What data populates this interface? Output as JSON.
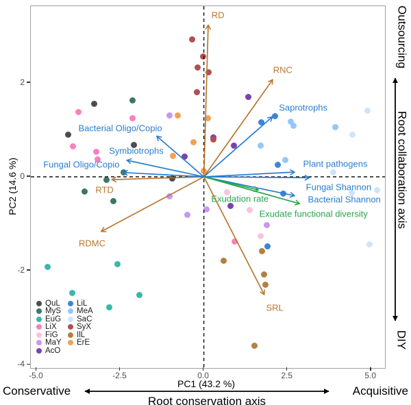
{
  "annotations": {
    "bottom": {
      "left": "Conservative",
      "right": "Acquisitive",
      "axis": "Root conservation axis"
    },
    "right": {
      "top": "Outsourcing",
      "bottom": "DIY",
      "axis": "Root collaboration axis"
    }
  },
  "legend": {
    "columns": [
      [
        "QuL",
        "MyS",
        "EuG",
        "LiX",
        "FiG",
        "MaY",
        "AcO"
      ],
      [
        "LiL",
        "MeA",
        "SaC",
        "SyX",
        "IlL",
        "ErE"
      ]
    ]
  },
  "chart_data": {
    "type": "scatter",
    "subtype": "pca-biplot",
    "xlabel": "PC1 (43.2 %)",
    "ylabel": "PC2 (14.6 %)",
    "xlim": [
      -5.17,
      5.41
    ],
    "ylim": [
      -4.05,
      3.63
    ],
    "x_ticks": [
      {
        "v": -5.0,
        "label": "-5.0"
      },
      {
        "v": -2.5,
        "label": "-2.5"
      },
      {
        "v": 0.0,
        "label": "0.0"
      },
      {
        "v": 2.5,
        "label": "2.5"
      },
      {
        "v": 5.0,
        "label": "5.0"
      }
    ],
    "y_ticks": [
      {
        "v": 2,
        "label": "2"
      },
      {
        "v": 0,
        "label": "0"
      },
      {
        "v": -2,
        "label": "-2"
      },
      {
        "v": -4,
        "label": "-4"
      }
    ],
    "dashed_zero_axes": true,
    "grid": false,
    "legend_position": "inside bottom-left",
    "groups": [
      {
        "name": "QuL",
        "color": "#4d4d4d",
        "points": [
          [
            -3.28,
            1.55
          ],
          [
            -4.06,
            0.9
          ],
          [
            -2.1,
            0.68
          ],
          [
            -0.94,
            -0.03
          ]
        ]
      },
      {
        "name": "MyS",
        "color": "#3e7669",
        "points": [
          [
            -2.13,
            1.62
          ],
          [
            -2.4,
            0.1
          ],
          [
            -2.92,
            -0.06
          ],
          [
            -3.56,
            -0.31
          ],
          [
            -2.7,
            -0.52
          ]
        ]
      },
      {
        "name": "EuG",
        "color": "#38b8aa",
        "points": [
          [
            -4.68,
            -1.91
          ],
          [
            -2.59,
            -1.86
          ],
          [
            -3.94,
            -2.47
          ],
          [
            -1.92,
            -2.52
          ],
          [
            -2.82,
            -2.78
          ]
        ]
      },
      {
        "name": "LiX",
        "color": "#f980c0",
        "points": [
          [
            -3.74,
            1.38
          ],
          [
            -2.14,
            1.24
          ],
          [
            -3.92,
            0.65
          ],
          [
            -3.22,
            0.53
          ],
          [
            -3.17,
            0.37
          ],
          [
            0.92,
            -1.38
          ]
        ]
      },
      {
        "name": "FiG",
        "color": "#f9c4df",
        "points": [
          [
            0.7,
            -0.33
          ],
          [
            1.38,
            -0.71
          ],
          [
            1.69,
            -1.26
          ]
        ]
      },
      {
        "name": "MaY",
        "color": "#c897f0",
        "points": [
          [
            -1.02,
            1.31
          ],
          [
            -1.02,
            -0.42
          ],
          [
            -0.5,
            -0.81
          ],
          [
            0.07,
            -0.69
          ],
          [
            1.88,
            -1.03
          ]
        ]
      },
      {
        "name": "AcO",
        "color": "#7b42ad",
        "points": [
          [
            1.33,
            1.7
          ],
          [
            0.29,
            0.84
          ],
          [
            0.9,
            0.67
          ],
          [
            -0.58,
            0.43
          ],
          [
            0.8,
            -0.62
          ]
        ]
      },
      {
        "name": "LiL",
        "color": "#3d85d8",
        "points": [
          [
            2.13,
            1.29
          ],
          [
            1.71,
            1.16
          ],
          [
            2.2,
            0.26
          ],
          [
            2.38,
            -0.35
          ],
          [
            1.91,
            -1.48
          ]
        ]
      },
      {
        "name": "MeA",
        "color": "#95c7f8",
        "points": [
          [
            2.6,
            1.18
          ],
          [
            2.68,
            1.08
          ],
          [
            3.92,
            1.06
          ],
          [
            1.69,
            0.67
          ],
          [
            2.43,
            0.35
          ]
        ]
      },
      {
        "name": "SaC",
        "color": "#cfe4fa",
        "points": [
          [
            4.9,
            1.4
          ],
          [
            4.45,
            0.89
          ],
          [
            3.86,
            0.1
          ],
          [
            4.43,
            -0.34
          ],
          [
            5.17,
            -0.28
          ],
          [
            4.95,
            -1.43
          ]
        ]
      },
      {
        "name": "SyX",
        "color": "#b0504f",
        "points": [
          [
            -0.34,
            2.93
          ],
          [
            -0.02,
            2.56
          ],
          [
            -0.19,
            2.33
          ],
          [
            0.14,
            2.23
          ],
          [
            -0.2,
            1.8
          ],
          [
            0.29,
            0.79
          ]
        ]
      },
      {
        "name": "IlL",
        "color": "#b28045",
        "points": [
          [
            0.6,
            -1.78
          ],
          [
            1.74,
            -1.58
          ],
          [
            1.81,
            -2.07
          ],
          [
            1.85,
            -2.29
          ],
          [
            1.51,
            -3.6
          ]
        ]
      },
      {
        "name": "ErE",
        "color": "#f2a155",
        "points": [
          [
            -0.78,
            1.31
          ],
          [
            0.12,
            1.24
          ],
          [
            -0.3,
            0.74
          ],
          [
            -0.92,
            0.45
          ],
          [
            -0.01,
            0.12
          ]
        ]
      }
    ],
    "vectors": [
      {
        "label": "RD",
        "x": 0.13,
        "y": 3.22,
        "color": "#b8762f",
        "lx": 0.42,
        "ly": 3.44
      },
      {
        "label": "RNC",
        "x": 2.05,
        "y": 2.06,
        "color": "#b8762f",
        "lx": 2.36,
        "ly": 2.28
      },
      {
        "label": "RTD",
        "x": -2.74,
        "y": -0.06,
        "color": "#b8762f",
        "lx": -2.97,
        "ly": -0.28
      },
      {
        "label": "RDMC",
        "x": -3.06,
        "y": -1.16,
        "color": "#b8762f",
        "lx": -3.34,
        "ly": -1.42
      },
      {
        "label": "SRL",
        "x": 1.8,
        "y": -2.5,
        "color": "#b8762f",
        "lx": 2.12,
        "ly": -2.79
      },
      {
        "label": "Saprotrophs",
        "x": 2.04,
        "y": 1.27,
        "color": "#2a7dd1",
        "lx": 2.97,
        "ly": 1.47
      },
      {
        "label": "Bacterial Oligo/Copio",
        "x": -1.4,
        "y": 0.86,
        "color": "#2a7dd1",
        "lx": -2.5,
        "ly": 1.03
      },
      {
        "label": "Symbiotrophs",
        "x": -2.29,
        "y": 0.35,
        "color": "#2a7dd1",
        "lx": -2.02,
        "ly": 0.56
      },
      {
        "label": "Fungal Oligo/Copio",
        "x": -2.4,
        "y": 0.09,
        "color": "#2a7dd1",
        "lx": -3.66,
        "ly": 0.26
      },
      {
        "label": "Plant pathogens",
        "x": 2.7,
        "y": 0.1,
        "color": "#2a7dd1",
        "lx": 3.93,
        "ly": 0.27
      },
      {
        "label": "Fungal Shannon",
        "x": 3.14,
        "y": -0.02,
        "color": "#2a7dd1",
        "lx": 4.03,
        "ly": -0.22
      },
      {
        "label": "Bacterial Shannon",
        "x": 2.7,
        "y": -0.4,
        "color": "#2a7dd1",
        "lx": 4.2,
        "ly": -0.48
      },
      {
        "label": "Exudation rate",
        "x": 1.62,
        "y": -0.28,
        "color": "#2aa34f",
        "lx": 1.08,
        "ly": -0.47
      },
      {
        "label": "Exudate functional diversity",
        "x": 2.85,
        "y": -0.57,
        "color": "#2aa34f",
        "lx": 3.28,
        "ly": -0.78
      }
    ]
  }
}
